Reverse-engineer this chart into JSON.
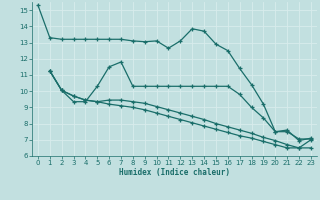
{
  "xlabel": "Humidex (Indice chaleur)",
  "xlim": [
    -0.5,
    23.5
  ],
  "ylim": [
    6,
    15.5
  ],
  "yticks": [
    6,
    7,
    8,
    9,
    10,
    11,
    12,
    13,
    14,
    15
  ],
  "xticks": [
    0,
    1,
    2,
    3,
    4,
    5,
    6,
    7,
    8,
    9,
    10,
    11,
    12,
    13,
    14,
    15,
    16,
    17,
    18,
    19,
    20,
    21,
    22,
    23
  ],
  "bg_color": "#c2e0e0",
  "line_color": "#1a6e6a",
  "grid_color": "#d8ecec",
  "lines": [
    {
      "x": [
        0,
        1,
        2,
        3,
        4,
        5,
        6,
        7,
        8,
        9,
        10,
        11,
        12,
        13,
        14,
        15,
        16,
        17,
        18,
        19,
        20,
        21,
        22,
        23
      ],
      "y": [
        15.3,
        13.3,
        13.2,
        13.2,
        13.2,
        13.2,
        13.2,
        13.2,
        13.1,
        13.05,
        13.1,
        12.65,
        13.1,
        13.85,
        13.7,
        12.9,
        12.5,
        11.4,
        10.4,
        9.2,
        7.5,
        7.6,
        6.95,
        7.1
      ]
    },
    {
      "x": [
        1,
        2,
        3,
        4,
        5,
        6,
        7,
        8,
        9,
        10,
        11,
        12,
        13,
        14,
        15,
        16,
        17,
        18,
        19,
        20,
        21,
        22,
        23
      ],
      "y": [
        11.25,
        10.05,
        9.35,
        9.35,
        10.3,
        11.5,
        11.8,
        10.3,
        10.3,
        10.3,
        10.3,
        10.3,
        10.3,
        10.3,
        10.3,
        10.3,
        9.8,
        9.0,
        8.35,
        7.5,
        7.5,
        7.05,
        7.05
      ]
    },
    {
      "x": [
        1,
        2,
        3,
        4,
        5,
        6,
        7,
        8,
        9,
        10,
        11,
        12,
        13,
        14,
        15,
        16,
        17,
        18,
        19,
        20,
        21,
        22,
        23
      ],
      "y": [
        11.25,
        10.05,
        9.7,
        9.45,
        9.35,
        9.45,
        9.45,
        9.35,
        9.25,
        9.05,
        8.85,
        8.65,
        8.45,
        8.25,
        8.0,
        7.8,
        7.6,
        7.4,
        7.15,
        6.95,
        6.7,
        6.5,
        6.5
      ]
    },
    {
      "x": [
        1,
        2,
        3,
        4,
        5,
        6,
        7,
        8,
        9,
        10,
        11,
        12,
        13,
        14,
        15,
        16,
        17,
        18,
        19,
        20,
        21,
        22,
        23
      ],
      "y": [
        11.25,
        10.05,
        9.7,
        9.45,
        9.35,
        9.2,
        9.1,
        9.0,
        8.85,
        8.65,
        8.45,
        8.25,
        8.05,
        7.85,
        7.65,
        7.45,
        7.25,
        7.1,
        6.9,
        6.7,
        6.5,
        6.5,
        7.0
      ]
    }
  ]
}
